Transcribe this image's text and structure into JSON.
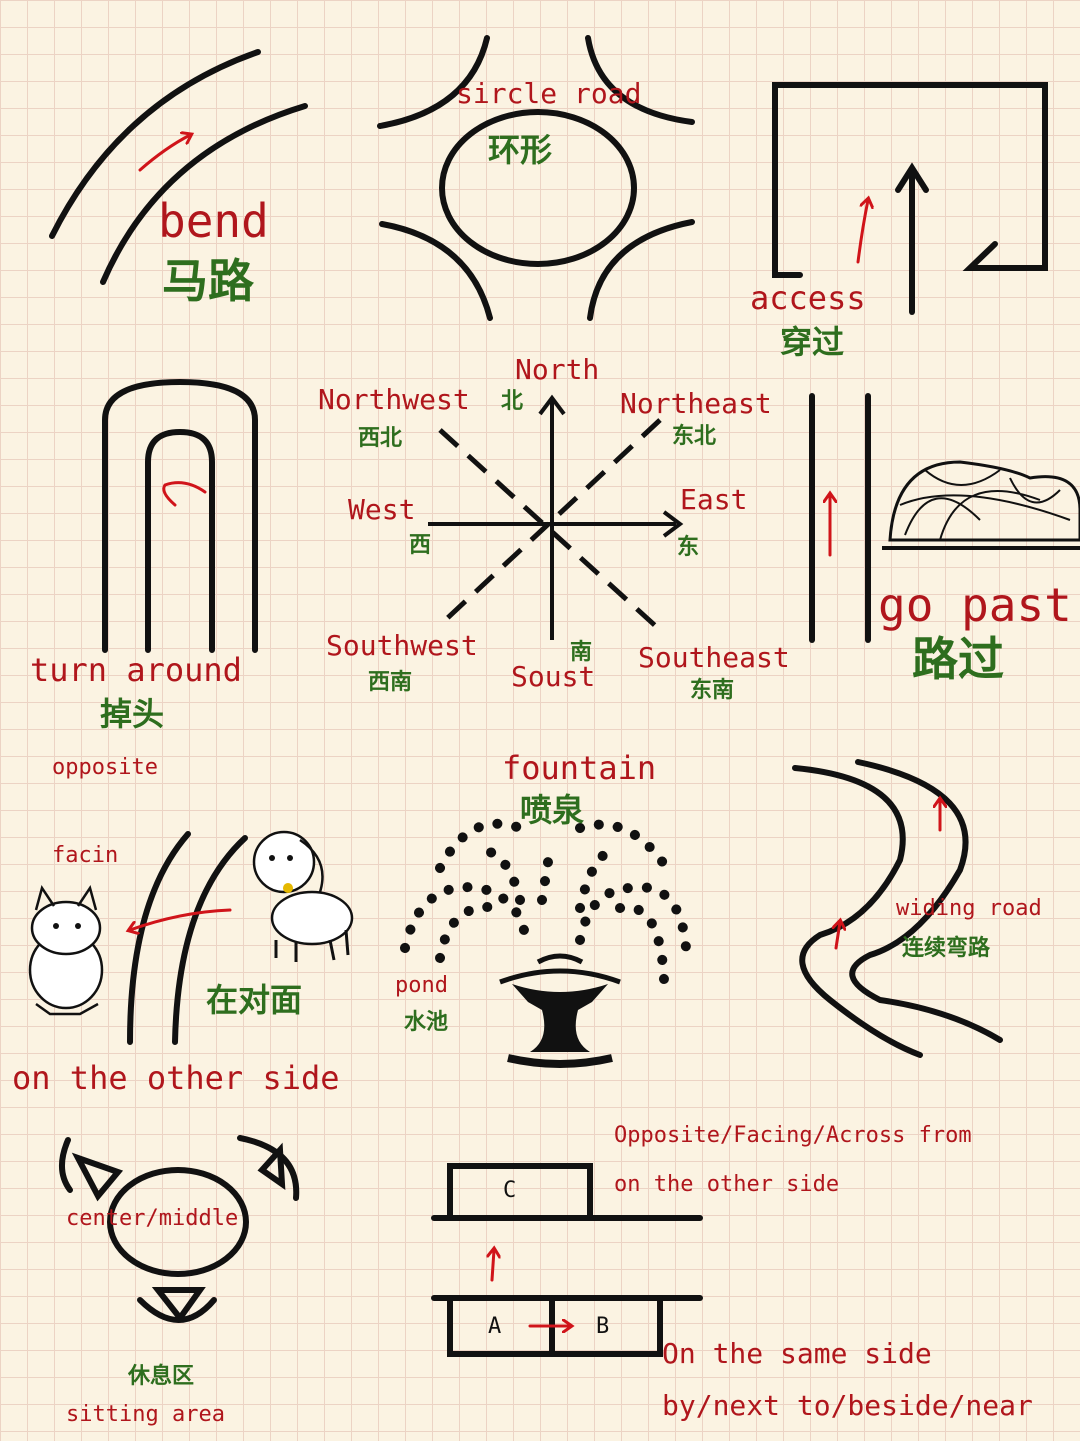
{
  "bend": {
    "en": "bend",
    "zh": "马路"
  },
  "circle": {
    "en": "sircle road",
    "zh": "环形"
  },
  "access": {
    "en": "access",
    "zh": "穿过"
  },
  "compass": {
    "north": {
      "en": "North",
      "zh": "北"
    },
    "northwest": {
      "en": "Northwest",
      "zh": "西北"
    },
    "northeast": {
      "en": "Northeast",
      "zh": "东北"
    },
    "west": {
      "en": "West",
      "zh": "西"
    },
    "east": {
      "en": "East",
      "zh": "东"
    },
    "southwest": {
      "en": "Southwest",
      "zh": "西南"
    },
    "south": {
      "en": "Soust",
      "zh": "南"
    },
    "southeast": {
      "en": "Southeast",
      "zh": "东南"
    }
  },
  "turn": {
    "en": "turn around",
    "zh": "掉头"
  },
  "gopast": {
    "en": "go past",
    "zh": "路过"
  },
  "opposite": {
    "title": "opposite",
    "facing": "facin",
    "zh": "在对面",
    "bottom": "on the other side"
  },
  "fountain": {
    "en": "fountain",
    "zh": "喷泉",
    "pond_en": "pond",
    "pond_zh": "水池"
  },
  "winding": {
    "en": "widing road",
    "zh": "连续弯路"
  },
  "sitting": {
    "center": "center/middle",
    "zh": "休息区",
    "en": "sitting area"
  },
  "sides": {
    "box_c": "C",
    "box_a": "A",
    "box_b": "B",
    "opposite_line1": "Opposite/Facing/Across from",
    "opposite_line2": "on the other side",
    "same_line1": "On the same side",
    "same_line2": "by/next to/beside/near"
  },
  "colors": {
    "background": "#fbf3e2",
    "grid": "#ecd3c4",
    "english": "#b0161c",
    "chinese": "#2e6e1e",
    "ink": "#111111"
  }
}
